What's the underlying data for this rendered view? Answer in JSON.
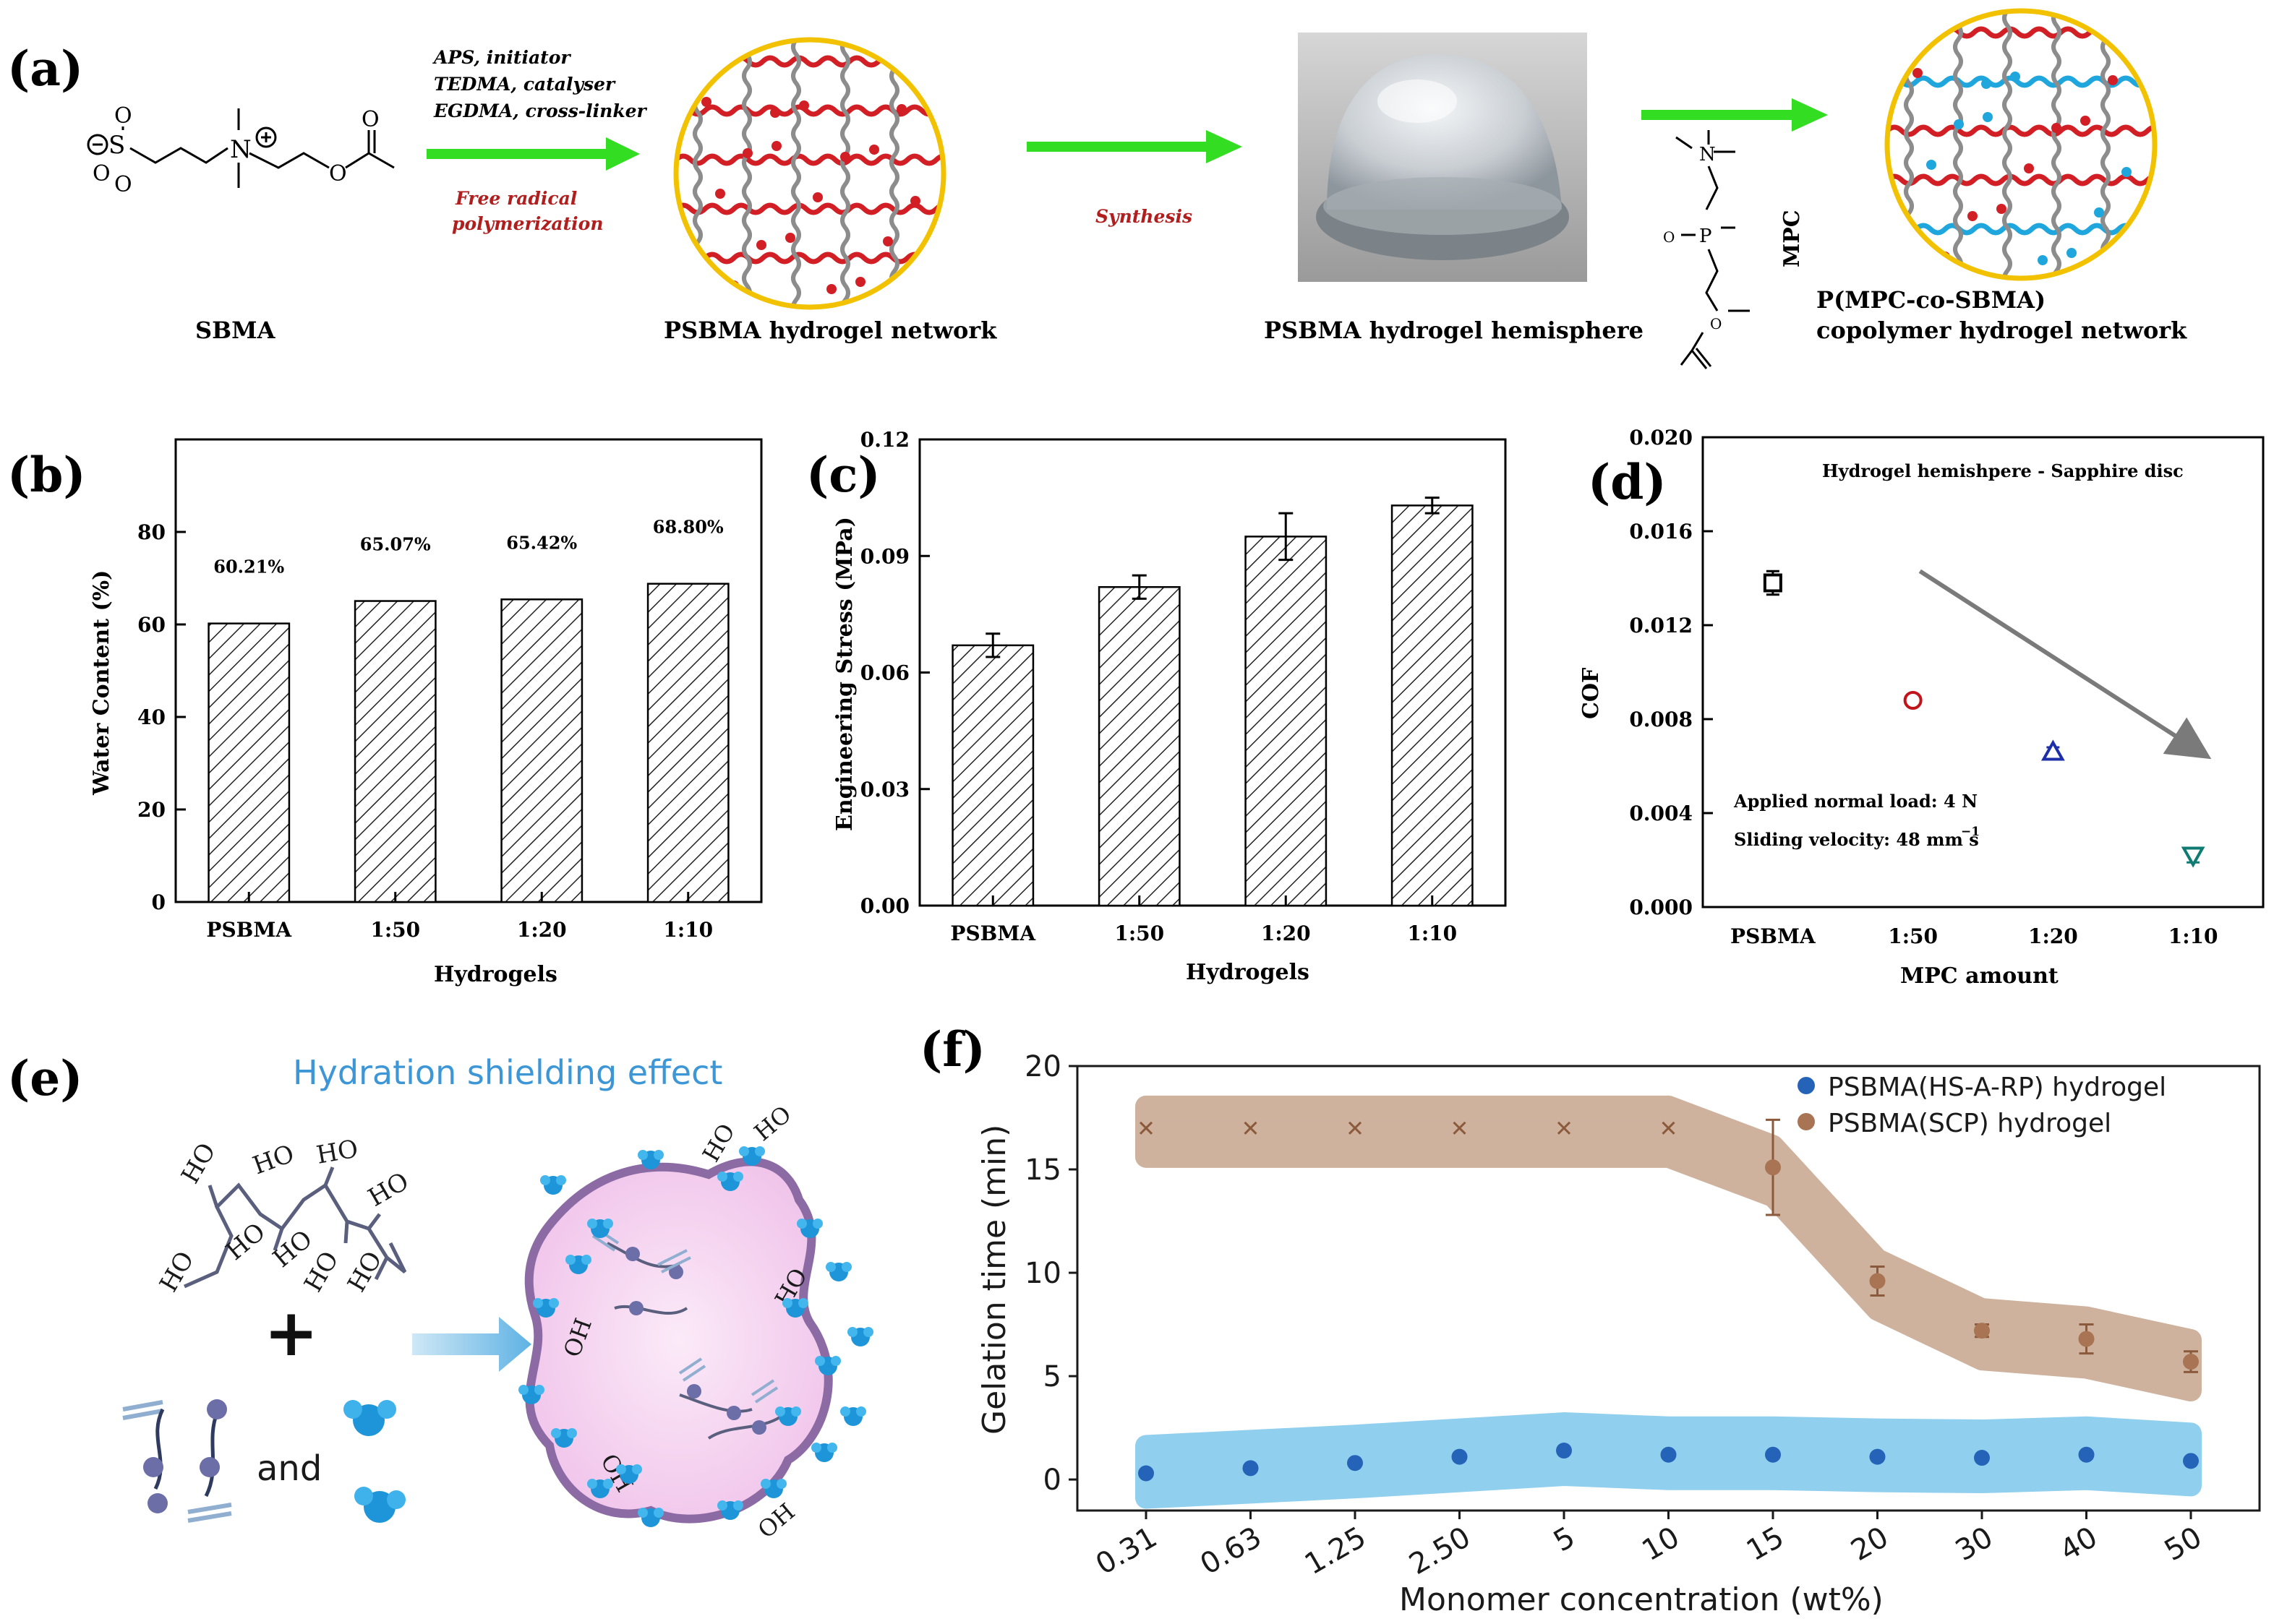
{
  "panel_a": {
    "letter": "(a)",
    "sbma_caption": "SBMA",
    "reagents": [
      "APS, initiator",
      "TEDMA, catalyser",
      "EGDMA, cross-linker"
    ],
    "reaction": [
      "Free radical",
      "polymerization"
    ],
    "synthesis_label": "Synthesis",
    "network_caption": "PSBMA hydrogel network",
    "hemisphere_caption": "PSBMA hydrogel hemisphere",
    "mpc_label": "MPC",
    "copolymer_caption_1": "P(MPC-co-SBMA)",
    "copolymer_caption_2": "copolymer hydrogel network",
    "colors": {
      "arrow": "#33dd22",
      "psbma": "#d21f26",
      "mpc": "#1fa6dc",
      "crosslink": "#8c8c8c",
      "circle_border": "#f2c200"
    }
  },
  "panel_b": {
    "letter": "(b)",
    "chart_data": {
      "type": "bar",
      "categories": [
        "PSBMA",
        "1:50",
        "1:20",
        "1:10"
      ],
      "values": [
        60.21,
        65.07,
        65.42,
        68.8
      ],
      "data_labels": [
        "60.21%",
        "65.07%",
        "65.42%",
        "68.80%"
      ],
      "xlabel": "Hydrogels",
      "ylabel": "Water Content (%)",
      "ylim": [
        0,
        100
      ],
      "yticks": [
        "0",
        "20",
        "40",
        "60",
        "80"
      ],
      "fill": "hatched"
    }
  },
  "panel_c": {
    "letter": "(c)",
    "chart_data": {
      "type": "bar",
      "categories": [
        "PSBMA",
        "1:50",
        "1:20",
        "1:10"
      ],
      "values": [
        0.067,
        0.082,
        0.095,
        0.103
      ],
      "errors": [
        0.003,
        0.003,
        0.006,
        0.002
      ],
      "xlabel": "Hydrogels",
      "ylabel": "Engineering Stress (MPa)",
      "ylim": [
        0,
        0.12
      ],
      "yticks": [
        "0.00",
        "0.03",
        "0.06",
        "0.09",
        "0.12"
      ],
      "fill": "hatched"
    }
  },
  "panel_d": {
    "letter": "(d)",
    "chart_data": {
      "type": "scatter",
      "title": "Hydrogel hemishpere - Sapphire disc",
      "categories": [
        "PSBMA",
        "1:50",
        "1:20",
        "1:10"
      ],
      "values": [
        0.0138,
        0.0088,
        0.0066,
        0.0022
      ],
      "errors": [
        0.0005,
        0.0002,
        0.0002,
        0.0003
      ],
      "markers": [
        "square",
        "circle",
        "triangle-up",
        "triangle-down"
      ],
      "colors": [
        "#000000",
        "#c0151b",
        "#1c2fa8",
        "#0f7b72"
      ],
      "xlabel": "MPC amount",
      "ylabel": "COF",
      "ylim": [
        0,
        0.02
      ],
      "yticks": [
        "0.000",
        "0.004",
        "0.008",
        "0.012",
        "0.016",
        "0.020"
      ],
      "annotations": [
        "Applied normal load: 4 N",
        "Sliding velocity: 48 mm s",
        "−1"
      ],
      "trend_arrow_color": "#7a7a7a"
    }
  },
  "panel_e": {
    "letter": "(e)",
    "title": "Hydration shielding effect",
    "title_color": "#3d97d6",
    "and_label": "and",
    "plus_label": "+",
    "hydroxyl": "HO",
    "hydroxyl_right": "OH",
    "colors": {
      "chain": "#5b5f7e",
      "cloud": "#f2c9ec",
      "outline": "#8c6aa4",
      "water": "#1d95d8",
      "bead": "#6c6ea8"
    }
  },
  "panel_f": {
    "letter": "(f)",
    "chart_data": {
      "type": "scatter",
      "categories": [
        "0.31",
        "0.63",
        "1.25",
        "2.50",
        "5",
        "10",
        "15",
        "20",
        "30",
        "40",
        "50"
      ],
      "series": [
        {
          "name": "PSBMA(HS-A-RP) hydrogel",
          "color": "#2563b8",
          "marker": "circle",
          "values": [
            0.3,
            0.55,
            0.8,
            1.1,
            1.4,
            1.2,
            1.2,
            1.1,
            1.05,
            1.2,
            0.9
          ]
        },
        {
          "name": "PSBMA(SCP) hydrogel",
          "color": "#a87454",
          "marker": "x-then-circle",
          "values": [
            17,
            17,
            17,
            17,
            17,
            17,
            15.1,
            9.6,
            7.2,
            6.8,
            5.7
          ],
          "errors": [
            0,
            0,
            0,
            0,
            0,
            0,
            2.3,
            0.7,
            0.3,
            0.7,
            0.5
          ]
        }
      ],
      "xlabel": "Monomer concentration (wt%)",
      "ylabel": "Gelation time (min)",
      "ylim": [
        -1.5,
        20
      ],
      "yticks": [
        "0",
        "5",
        "10",
        "15",
        "20"
      ],
      "legend": "top-right",
      "band_colors": [
        "#7dc7ec",
        "#c9aa93"
      ]
    }
  }
}
